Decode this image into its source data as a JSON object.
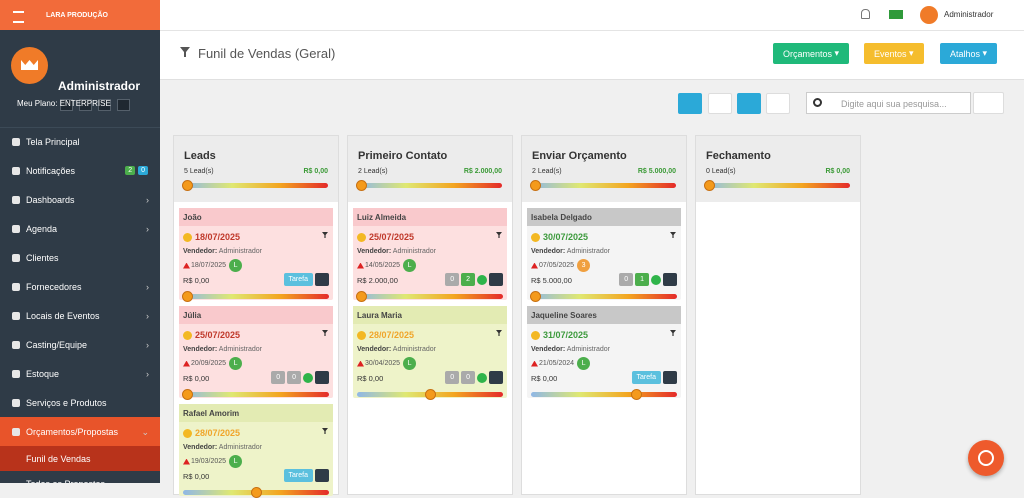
{
  "sidebar": {
    "brand": "LARA PRODUÇÃO",
    "user": "Administrador",
    "plan": "Meu Plano: ENTERPRISE",
    "menu": [
      {
        "label": "Tela Principal"
      },
      {
        "label": "Notificações",
        "badges": [
          "2",
          "0"
        ]
      },
      {
        "label": "Dashboards"
      },
      {
        "label": "Agenda"
      },
      {
        "label": "Clientes"
      },
      {
        "label": "Fornecedores"
      },
      {
        "label": "Locais de Eventos"
      },
      {
        "label": "Casting/Equipe"
      },
      {
        "label": "Estoque"
      },
      {
        "label": "Serviços e Produtos"
      },
      {
        "label": "Orçamentos/Propostas"
      }
    ],
    "submenu": [
      "Funil de Vendas",
      "Todas as Propostas"
    ]
  },
  "topbar": {
    "user": "Administrador"
  },
  "header": {
    "title": "Funil de Vendas (Geral)",
    "buttons": [
      "Orçamentos",
      "Eventos",
      "Atalhos"
    ]
  },
  "toolbar": {
    "search_placeholder": "Digite aqui sua pesquisa..."
  },
  "columns": [
    {
      "title": "Leads",
      "count": "5 Lead(s)",
      "total": "R$ 0,00",
      "cards": [
        {
          "name": "João",
          "date": "18/07/2025",
          "seller_label": "Vendedor:",
          "seller": "Administrador",
          "created": "18/07/2025",
          "badge": "L",
          "value": "R$ 0,00",
          "task": "Tarefa"
        },
        {
          "name": "Júlia",
          "date": "25/07/2025",
          "seller_label": "Vendedor:",
          "seller": "Administrador",
          "created": "20/09/2025",
          "badge": "L",
          "value": "R$ 0,00",
          "emails": "0",
          "links": "0"
        },
        {
          "name": "Rafael Amorim",
          "date": "28/07/2025",
          "seller_label": "Vendedor:",
          "seller": "Administrador",
          "created": "19/03/2025",
          "badge": "L",
          "value": "R$ 0,00",
          "task": "Tarefa"
        }
      ]
    },
    {
      "title": "Primeiro Contato",
      "count": "2 Lead(s)",
      "total": "R$ 2.000,00",
      "cards": [
        {
          "name": "Luiz Almeida",
          "date": "25/07/2025",
          "seller_label": "Vendedor:",
          "seller": "Administrador",
          "created": "14/05/2025",
          "badge": "L",
          "value": "R$ 2.000,00",
          "emails": "0",
          "links": "2"
        },
        {
          "name": "Laura Maria",
          "date": "28/07/2025",
          "seller_label": "Vendedor:",
          "seller": "Administrador",
          "created": "30/04/2025",
          "badge": "L",
          "value": "R$ 0,00",
          "emails": "0",
          "links": "0"
        }
      ]
    },
    {
      "title": "Enviar Orçamento",
      "count": "2 Lead(s)",
      "total": "R$ 5.000,00",
      "cards": [
        {
          "name": "Isabela Delgado",
          "date": "30/07/2025",
          "seller_label": "Vendedor:",
          "seller": "Administrador",
          "created": "07/05/2025",
          "badge": "3",
          "value": "R$ 5.000,00",
          "emails": "0",
          "links": "1"
        },
        {
          "name": "Jaqueline Soares",
          "date": "31/07/2025",
          "seller_label": "Vendedor:",
          "seller": "Administrador",
          "created": "21/05/2024",
          "badge": "L",
          "value": "R$ 0,00",
          "task": "Tarefa"
        }
      ]
    },
    {
      "title": "Fechamento",
      "count": "0 Lead(s)",
      "total": "R$ 0,00",
      "cards": []
    }
  ]
}
